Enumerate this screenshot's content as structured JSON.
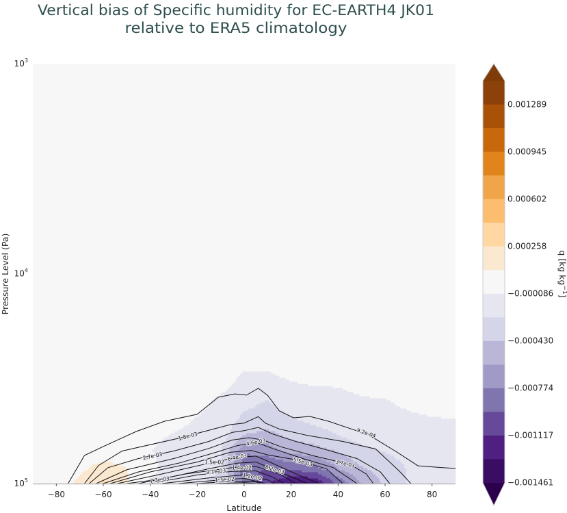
{
  "chart_data": {
    "type": "heatmap",
    "title": [
      "Vertical bias of Specific humidity for EC-EARTH4 JK01",
      "relative to ERA5 climatology"
    ],
    "xlabel": "Latitude",
    "ylabel": "Pressure Level (Pa)",
    "xlim": [
      -90,
      90
    ],
    "ylim": [
      1000,
      100000
    ],
    "y_scale": "log",
    "y_inverted": true,
    "grid": false,
    "x_ticks": [
      "−80",
      "−60",
      "−40",
      "−20",
      "0",
      "20",
      "40",
      "60",
      "80"
    ],
    "x_tick_values": [
      -80,
      -60,
      -40,
      -20,
      0,
      20,
      40,
      60,
      80
    ],
    "y_ticks": [
      {
        "value": 1000,
        "base": "10",
        "exp": "3"
      },
      {
        "value": 10000,
        "base": "10",
        "exp": "4"
      },
      {
        "value": 100000,
        "base": "10",
        "exp": "5"
      }
    ],
    "colorbar": {
      "label": "q [kg kg",
      "label_exp": "−1",
      "label_close": "]",
      "placement": "right",
      "extend": "both",
      "levels_top": 0.001461,
      "level_step": 0.000172,
      "ticks": [
        "0.001289",
        "0.000945",
        "0.000602",
        "0.000258",
        "−0.000086",
        "−0.000430",
        "−0.000774",
        "−0.001117",
        "−0.001461"
      ],
      "tick_values": [
        0.001289,
        0.000945,
        0.000602,
        0.000258,
        -8.6e-05,
        -0.00043,
        -0.000774,
        -0.001117,
        -0.001461
      ],
      "over_color": "#7f3b08",
      "under_color": "#2d004b",
      "band_colors": [
        "#8c410a",
        "#a95207",
        "#c8680d",
        "#e0841b",
        "#f0a54a",
        "#fdbd6e",
        "#fed7a3",
        "#fbe8d0",
        "#f7f7f7",
        "#e6e6f1",
        "#d4d5e8",
        "#bab6d8",
        "#a09ac6",
        "#8075ae",
        "#67499b",
        "#4f1f81",
        "#3b0c63"
      ]
    },
    "bias_field": {
      "latitudes": [
        -90,
        -80,
        -70,
        -60,
        -50,
        -40,
        -30,
        -20,
        -10,
        0,
        10,
        20,
        30,
        40,
        50,
        60,
        70,
        80,
        90
      ],
      "pressures": [
        25000,
        30000,
        35000,
        40000,
        50000,
        60000,
        70000,
        85000,
        100000
      ],
      "values": [
        [
          0,
          0,
          0,
          0,
          0,
          0,
          0,
          0,
          0,
          0,
          0,
          0,
          0,
          0,
          0,
          0,
          0,
          0,
          0
        ],
        [
          0,
          0,
          0,
          0,
          0,
          0,
          0,
          0,
          0,
          -0.0001,
          -0.0001,
          -5e-05,
          0,
          0,
          0,
          0,
          0,
          0,
          0
        ],
        [
          0,
          0,
          0,
          0,
          0,
          0,
          0,
          0,
          -5e-05,
          -0.00015,
          -0.00015,
          -0.00012,
          -0.0001,
          -9e-05,
          -6e-05,
          -4e-05,
          0,
          0,
          0
        ],
        [
          0,
          0,
          0,
          0,
          0,
          0,
          0,
          -3e-05,
          -0.00012,
          -0.0002,
          -0.00026,
          -0.00016,
          -0.00013,
          -0.00012,
          -0.0001,
          -9e-05,
          -6e-05,
          -3e-05,
          -2e-05
        ],
        [
          0,
          0,
          0,
          0,
          0,
          0,
          -5e-05,
          -0.0001,
          -0.00015,
          -0.0003,
          -0.00035,
          -0.00028,
          -0.00022,
          -0.00018,
          -0.00015,
          -0.00013,
          -0.00011,
          -0.0001,
          -9e-05
        ],
        [
          0,
          0,
          0,
          0,
          0,
          -6e-05,
          -0.0001,
          -0.00012,
          -0.00018,
          -0.00045,
          -0.0005,
          -0.0004,
          -0.00035,
          -0.00027,
          -0.0002,
          -0.00019,
          -0.00018,
          -0.00017,
          -0.00016
        ],
        [
          0,
          0,
          0,
          0,
          0,
          -8e-05,
          -0.00015,
          -0.00018,
          -0.00025,
          -0.00075,
          -0.0007,
          -0.00055,
          -0.0005,
          -0.00042,
          -0.0003,
          -0.00025,
          -0.0002,
          -0.00018,
          -0.00018
        ],
        [
          0,
          0,
          5e-05,
          0.00015,
          9e-05,
          -5e-05,
          -0.00015,
          -0.0002,
          -0.00025,
          -0.0009,
          -0.00095,
          -0.0009,
          -0.00085,
          -0.0006,
          -0.00045,
          -0.00035,
          -0.00025,
          -0.0002,
          -0.0002
        ],
        [
          0,
          0,
          0.00012,
          0.00028,
          0.0001,
          -0.0001,
          -0.00018,
          -0.00025,
          -0.0003,
          -0.0008,
          -0.0011,
          -0.0013,
          -0.0013,
          -0.0009,
          -0.0006,
          -0.0004,
          -0.00025,
          -0.00022,
          -0.0002
        ]
      ]
    },
    "climatology_contours": [
      {
        "label": "9.2e-04",
        "label_at": [
          52,
          57500
        ],
        "points": [
          [
            -75,
            100000
          ],
          [
            -68,
            73500
          ],
          [
            -60,
            66600
          ],
          [
            -46,
            56500
          ],
          [
            -34,
            50500
          ],
          [
            -20,
            46800
          ],
          [
            -11,
            38800
          ],
          [
            -4,
            37400
          ],
          [
            1,
            37900
          ],
          [
            6,
            35200
          ],
          [
            10,
            38000
          ],
          [
            15,
            45100
          ],
          [
            21,
            48600
          ],
          [
            28,
            47900
          ],
          [
            36,
            50500
          ],
          [
            53,
            58600
          ],
          [
            65,
            70800
          ],
          [
            74,
            82300
          ],
          [
            85,
            84100
          ],
          [
            90,
            84700
          ]
        ]
      },
      {
        "label": "1.8e-03",
        "label_at": [
          -24,
          59500
        ],
        "points": [
          [
            -68,
            100000
          ],
          [
            -62,
            82000
          ],
          [
            -52,
            70000
          ],
          [
            -28,
            60900
          ],
          [
            -17,
            56500
          ],
          [
            -6,
            52400
          ],
          [
            0,
            51500
          ],
          [
            6,
            48000
          ],
          [
            9,
            51500
          ],
          [
            15,
            55000
          ],
          [
            27,
            59000
          ],
          [
            42,
            63000
          ],
          [
            56,
            68500
          ],
          [
            66,
            87000
          ],
          [
            71,
            100000
          ]
        ]
      },
      {
        "label": "2.7e-03",
        "label_at": [
          -39,
          74000
        ],
        "points": [
          [
            -66,
            100000
          ],
          [
            -58,
            84000
          ],
          [
            -45,
            76000
          ],
          [
            -30,
            70000
          ],
          [
            -15,
            63000
          ],
          [
            -5,
            57000
          ],
          [
            0,
            56000
          ],
          [
            6,
            54000
          ],
          [
            12,
            58000
          ],
          [
            22,
            63000
          ],
          [
            35,
            69000
          ],
          [
            48,
            76000
          ],
          [
            58,
            88000
          ],
          [
            62,
            100000
          ]
        ]
      },
      {
        "label": "3.7e-03",
        "label_at": [
          43,
          80500
        ],
        "points": [
          [
            -63,
            100000
          ],
          [
            -50,
            86000
          ],
          [
            -30,
            76000
          ],
          [
            -15,
            68000
          ],
          [
            -5,
            62000
          ],
          [
            2,
            60500
          ],
          [
            8,
            62000
          ],
          [
            16,
            67000
          ],
          [
            30,
            74000
          ],
          [
            45,
            81000
          ],
          [
            52,
            90000
          ],
          [
            55,
            100000
          ]
        ]
      },
      {
        "label": "4.6e-03",
        "label_at": [
          5,
          63500
        ],
        "points": [
          [
            -60,
            100000
          ],
          [
            -45,
            88000
          ],
          [
            -28,
            80000
          ],
          [
            -12,
            71000
          ],
          [
            -3,
            66000
          ],
          [
            5,
            63500
          ],
          [
            12,
            68000
          ],
          [
            25,
            76000
          ],
          [
            38,
            84000
          ],
          [
            48,
            100000
          ]
        ]
      },
      {
        "label": "5.5e-03",
        "label_at": [
          25,
          79000
        ],
        "points": [
          [
            -57,
            100000
          ],
          [
            -40,
            88000
          ],
          [
            -20,
            79000
          ],
          [
            -6,
            71000
          ],
          [
            3,
            69500
          ],
          [
            10,
            73000
          ],
          [
            22,
            77000
          ],
          [
            35,
            85000
          ],
          [
            42,
            100000
          ]
        ]
      },
      {
        "label": "6.4e-03",
        "label_at": [
          -3,
          75000
        ],
        "points": [
          [
            -54,
            100000
          ],
          [
            -35,
            90000
          ],
          [
            -15,
            80000
          ],
          [
            -3,
            75000
          ],
          [
            5,
            74000
          ],
          [
            12,
            80000
          ],
          [
            25,
            93000
          ],
          [
            32,
            100000
          ]
        ]
      },
      {
        "label": "7.3e-03",
        "label_at": [
          -36,
          96000
        ],
        "points": [
          [
            -50,
            100000
          ],
          [
            -35,
            95000
          ],
          [
            -15,
            85000
          ],
          [
            -3,
            80000
          ],
          [
            5,
            79000
          ],
          [
            15,
            88000
          ],
          [
            27,
            100000
          ]
        ]
      },
      {
        "label": "8.2e-03",
        "label_at": [
          13,
          86000
        ],
        "points": [
          [
            -45,
            100000
          ],
          [
            -25,
            90000
          ],
          [
            -5,
            84000
          ],
          [
            5,
            83000
          ],
          [
            15,
            90000
          ],
          [
            22,
            100000
          ]
        ]
      },
      {
        "label": "9.1e-03",
        "label_at": [
          -12,
          87500
        ],
        "points": [
          [
            -40,
            100000
          ],
          [
            -20,
            91000
          ],
          [
            -5,
            87500
          ],
          [
            5,
            87000
          ],
          [
            12,
            93000
          ],
          [
            17,
            100000
          ]
        ]
      },
      {
        "label": "1.2e-02",
        "label_at": [
          5,
          91000
        ],
        "points": [
          [
            -35,
            100000
          ],
          [
            -15,
            94000
          ],
          [
            0,
            91000
          ],
          [
            10,
            96000
          ],
          [
            13,
            100000
          ]
        ]
      },
      {
        "label": "1.3e-02",
        "label_at": [
          -1,
          95500
        ],
        "points": [
          [
            -28,
            100000
          ],
          [
            -10,
            96000
          ],
          [
            0,
            94500
          ],
          [
            9,
            100000
          ]
        ]
      },
      {
        "label": "1.4e-02",
        "label_at": [
          -1,
          98000
        ],
        "points": [
          [
            -20,
            100000
          ],
          [
            -5,
            97500
          ],
          [
            5,
            98000
          ],
          [
            7,
            100000
          ]
        ]
      },
      {
        "label": "1.5e-02",
        "label_at": [
          -1,
          99500
        ],
        "points": [
          [
            -12,
            100000
          ],
          [
            0,
            99000
          ],
          [
            5,
            100000
          ]
        ]
      }
    ]
  }
}
